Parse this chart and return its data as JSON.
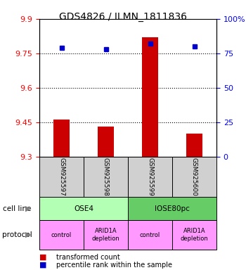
{
  "title": "GDS4826 / ILMN_1811836",
  "samples": [
    "GSM925597",
    "GSM925598",
    "GSM925599",
    "GSM925600"
  ],
  "red_values": [
    9.46,
    9.43,
    9.82,
    9.4
  ],
  "blue_values": [
    79,
    78,
    82,
    80
  ],
  "ylim_left": [
    9.3,
    9.9
  ],
  "ylim_right": [
    0,
    100
  ],
  "yticks_left": [
    9.3,
    9.45,
    9.6,
    9.75,
    9.9
  ],
  "yticks_right": [
    0,
    25,
    50,
    75,
    100
  ],
  "ytick_labels_left": [
    "9.3",
    "9.45",
    "9.6",
    "9.75",
    "9.9"
  ],
  "ytick_labels_right": [
    "0",
    "25",
    "50",
    "75",
    "100%"
  ],
  "hlines": [
    9.45,
    9.6,
    9.75
  ],
  "cell_line_colors": [
    "#b3ffb3",
    "#66cc66"
  ],
  "protocol_labels": [
    "control",
    "ARID1A\ndepletion",
    "control",
    "ARID1A\ndepletion"
  ],
  "protocol_color": "#ff99ff",
  "sample_box_color": "#d0d0d0",
  "bar_color": "#cc0000",
  "dot_color": "#0000cc",
  "legend_red_label": "transformed count",
  "legend_blue_label": "percentile rank within the sample",
  "cell_line_row_label": "cell line",
  "protocol_row_label": "protocol"
}
